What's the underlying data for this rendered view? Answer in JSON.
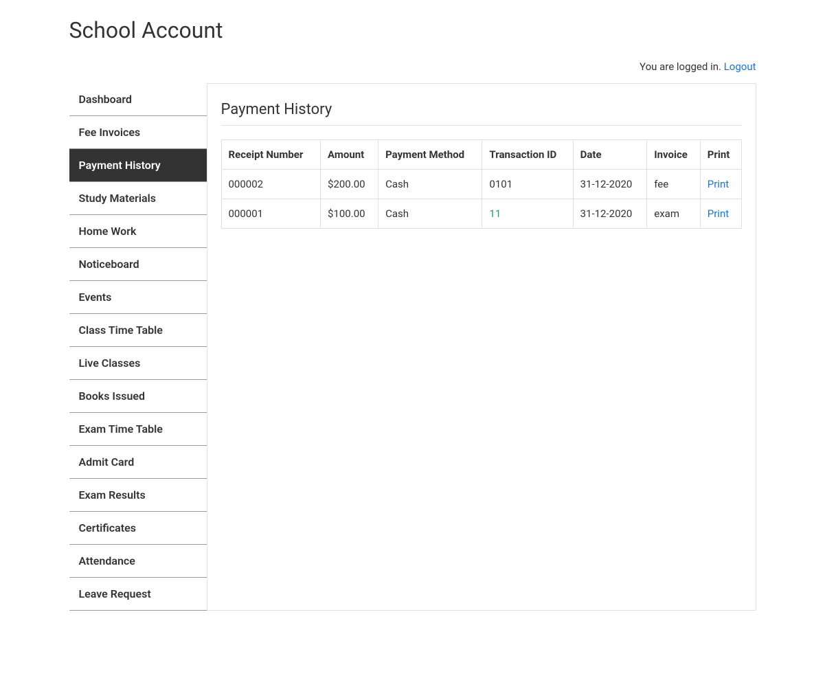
{
  "header": {
    "title": "School Account",
    "login_status": "You are logged in.",
    "logout_label": "Logout"
  },
  "sidebar": {
    "items": [
      {
        "label": "Dashboard",
        "active": false
      },
      {
        "label": "Fee Invoices",
        "active": false
      },
      {
        "label": "Payment History",
        "active": true
      },
      {
        "label": "Study Materials",
        "active": false
      },
      {
        "label": "Home Work",
        "active": false
      },
      {
        "label": "Noticeboard",
        "active": false
      },
      {
        "label": "Events",
        "active": false
      },
      {
        "label": "Class Time Table",
        "active": false
      },
      {
        "label": "Live Classes",
        "active": false
      },
      {
        "label": "Books Issued",
        "active": false
      },
      {
        "label": "Exam Time Table",
        "active": false
      },
      {
        "label": "Admit Card",
        "active": false
      },
      {
        "label": "Exam Results",
        "active": false
      },
      {
        "label": "Certificates",
        "active": false
      },
      {
        "label": "Attendance",
        "active": false
      },
      {
        "label": "Leave Request",
        "active": false
      }
    ]
  },
  "main": {
    "section_title": "Payment History",
    "table": {
      "columns": [
        "Receipt Number",
        "Amount",
        "Payment Method",
        "Transaction ID",
        "Date",
        "Invoice",
        "Print"
      ],
      "rows": [
        {
          "receipt": "000002",
          "amount": "$200.00",
          "method": "Cash",
          "txn_id": "0101",
          "txn_link": false,
          "date": "31-12-2020",
          "invoice": "fee",
          "print_label": "Print"
        },
        {
          "receipt": "000001",
          "amount": "$100.00",
          "method": "Cash",
          "txn_id": "11",
          "txn_link": true,
          "date": "31-12-2020",
          "invoice": "exam",
          "print_label": "Print"
        }
      ]
    }
  },
  "colors": {
    "background": "#ffffff",
    "text": "#333333",
    "link": "#1a73e8",
    "txn_link": "#1a9e5c",
    "active_bg": "#333333",
    "active_text": "#ffffff",
    "border": "#e0e0e0",
    "sidebar_border": "#999999"
  }
}
